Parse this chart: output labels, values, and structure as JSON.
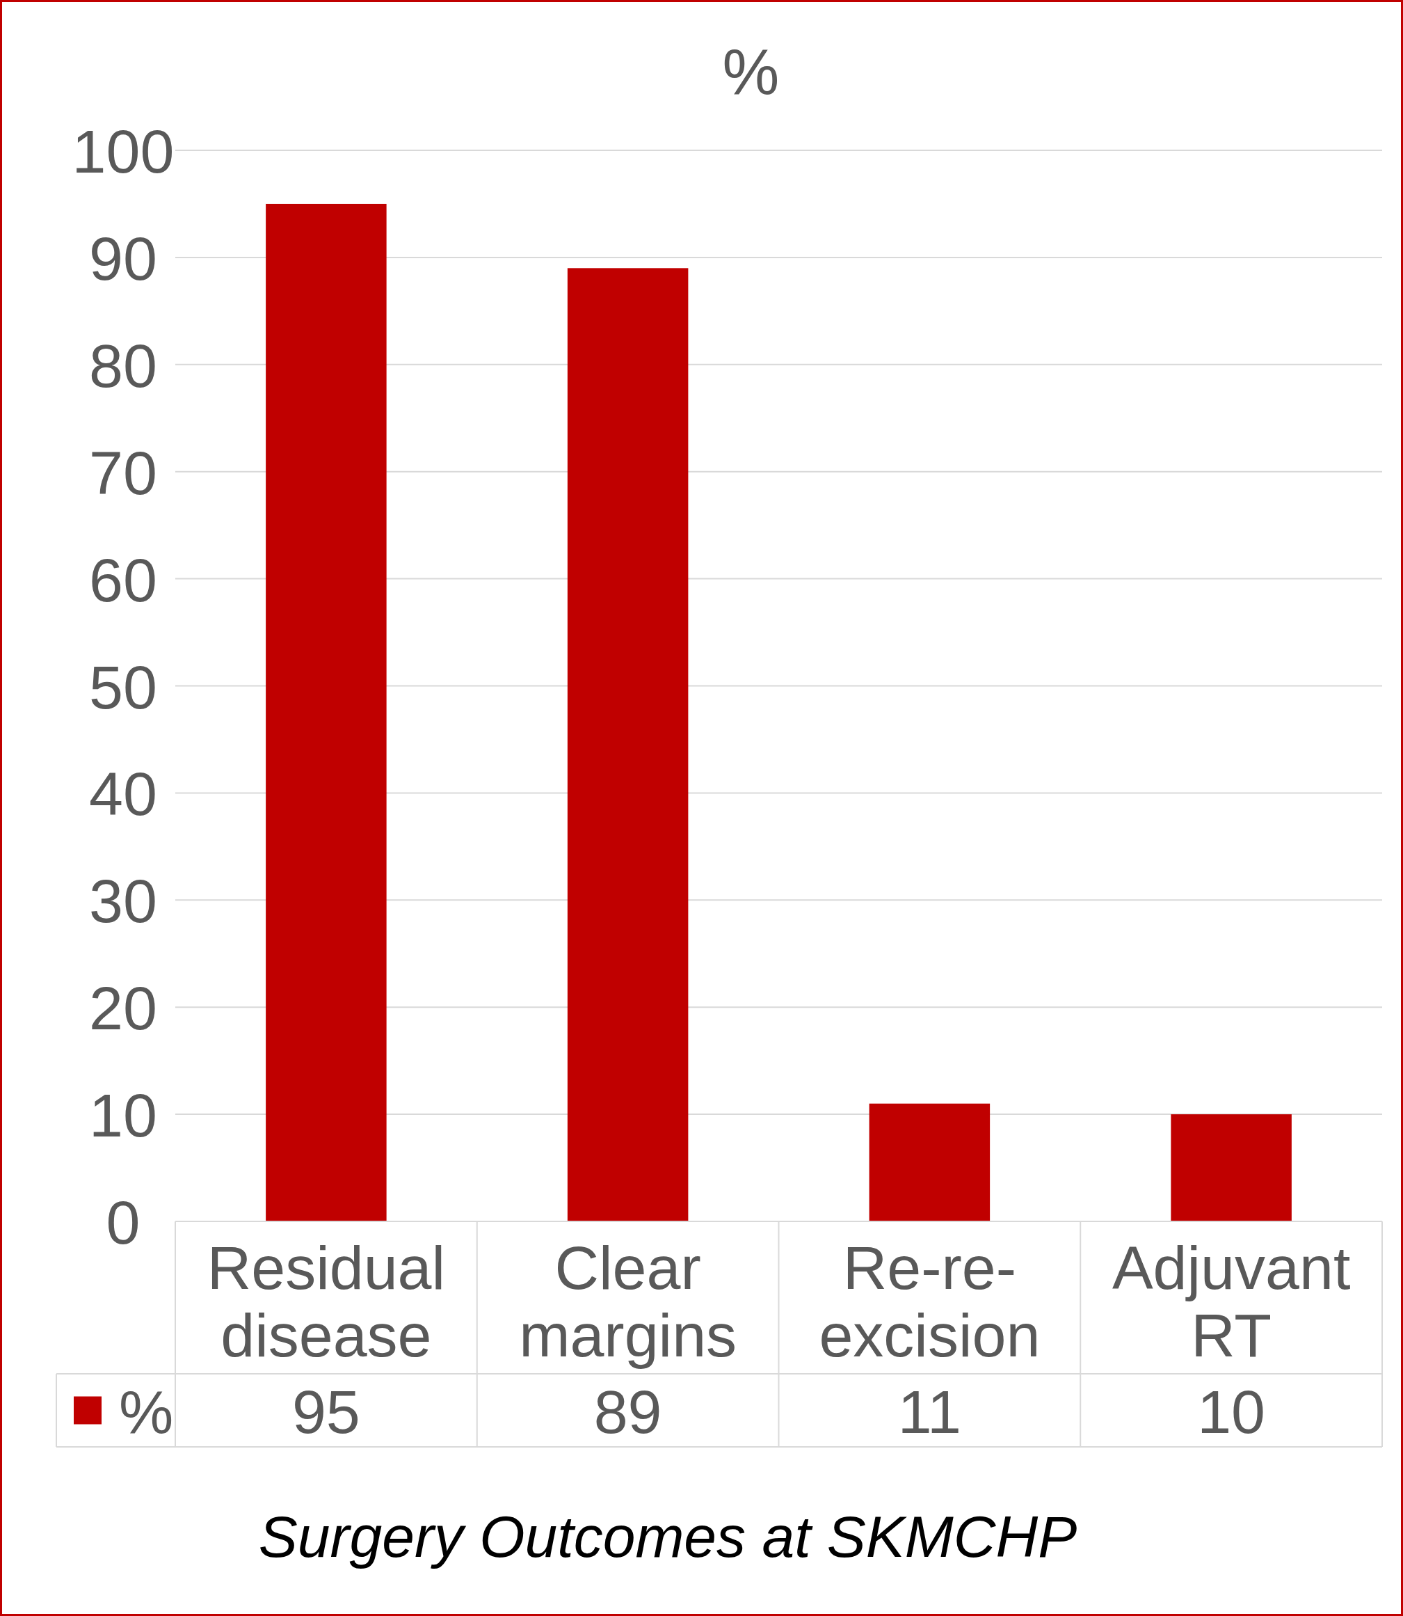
{
  "chart_data": {
    "type": "bar",
    "title": "%",
    "categories": [
      "Residual disease",
      "Clear margins",
      "Re-re-excision",
      "Adjuvant RT"
    ],
    "series": [
      {
        "name": "%",
        "color": "#c00000",
        "values": [
          95,
          89,
          11,
          10
        ]
      }
    ],
    "ylim": [
      0,
      100
    ],
    "yticks": [
      0,
      10,
      20,
      30,
      40,
      50,
      60,
      70,
      80,
      90,
      100
    ],
    "grid": "y",
    "legend": "bottom left",
    "data_labels": true,
    "annotations": [
      "Surgery Outcomes at SKMCHP"
    ]
  }
}
